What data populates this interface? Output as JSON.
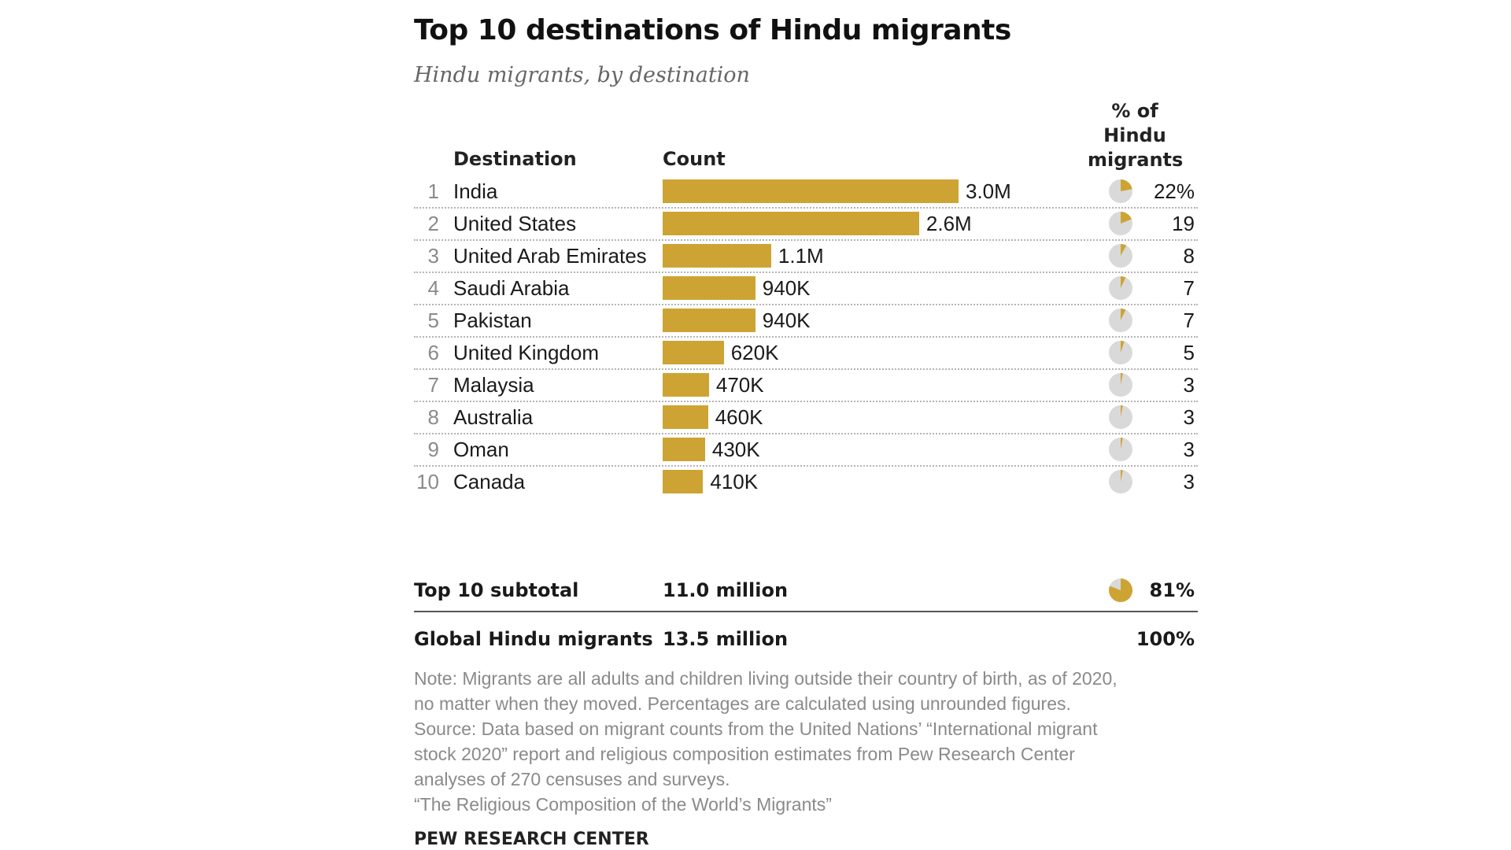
{
  "title": "Top 10 destinations of Hindu migrants",
  "subtitle": "Hindu migrants, by destination",
  "columns": {
    "destination": "Destination",
    "count": "Count",
    "pct_lines": [
      "% of",
      "Hindu",
      "migrants"
    ]
  },
  "colors": {
    "bar": "#cda434",
    "pie_background": "#d9d9d9"
  },
  "chart_data": {
    "type": "bar",
    "title": "Top 10 destinations of Hindu migrants",
    "subtitle": "Hindu migrants, by destination",
    "orientation": "horizontal",
    "xlim": [
      0,
      3000000
    ],
    "categories": [
      "India",
      "United States",
      "United Arab Emirates",
      "Saudi Arabia",
      "Pakistan",
      "United Kingdom",
      "Malaysia",
      "Australia",
      "Oman",
      "Canada"
    ],
    "ranks": [
      "1",
      "2",
      "3",
      "4",
      "5",
      "6",
      "7",
      "8",
      "9",
      "10"
    ],
    "values": [
      3000000,
      2600000,
      1100000,
      940000,
      940000,
      620000,
      470000,
      460000,
      430000,
      410000
    ],
    "value_labels": [
      "3.0M",
      "2.6M",
      "1.1M",
      "940K",
      "940K",
      "620K",
      "470K",
      "460K",
      "430K",
      "410K"
    ],
    "percent_values": [
      22,
      19,
      8,
      7,
      7,
      5,
      3,
      3,
      3,
      3
    ],
    "percent_labels": [
      "22%",
      "19",
      "8",
      "7",
      "7",
      "5",
      "3",
      "3",
      "3",
      "3"
    ],
    "subtotal": {
      "label": "Top 10 subtotal",
      "count": "11.0 million",
      "percent": 81,
      "percent_label": "81%"
    },
    "total": {
      "label": "Global Hindu migrants",
      "count": "13.5 million",
      "percent_label": "100%"
    }
  },
  "notes": [
    "Note: Migrants are all adults and children living outside their country of birth, as of 2020,",
    "no matter when they moved. Percentages are calculated using unrounded figures.",
    "Source: Data based on migrant counts from the United Nations’ “International migrant",
    "stock 2020” report and religious composition estimates from Pew Research Center",
    "analyses of 270 censuses and surveys.",
    "“The Religious Composition of the World’s Migrants”"
  ],
  "credit": "PEW RESEARCH CENTER"
}
